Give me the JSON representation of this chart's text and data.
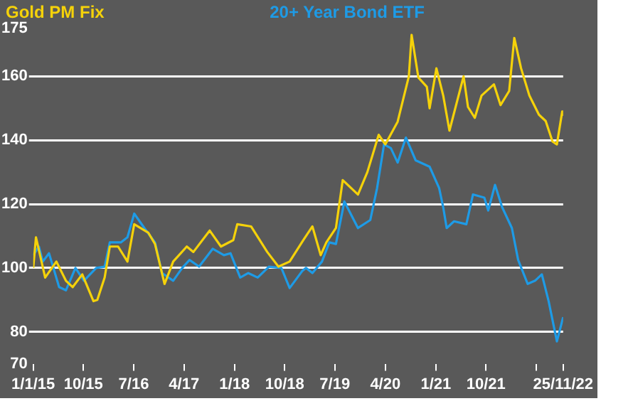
{
  "chart_data": {
    "type": "line",
    "legend": "top",
    "grid": "y",
    "xlim": [
      "2015-01-01",
      "2022-11-25"
    ],
    "ylim": [
      70,
      175
    ],
    "yticks": [
      70,
      80,
      100,
      120,
      140,
      160,
      175
    ],
    "xticks": [
      {
        "value": "2015-01-01",
        "label": "1/1/15"
      },
      {
        "value": "2015-10-01",
        "label": "10/15"
      },
      {
        "value": "2016-07-01",
        "label": "7/16"
      },
      {
        "value": "2017-04-01",
        "label": "4/17"
      },
      {
        "value": "2018-01-01",
        "label": "1/18"
      },
      {
        "value": "2018-10-01",
        "label": "10/18"
      },
      {
        "value": "2019-07-01",
        "label": "7/19"
      },
      {
        "value": "2020-04-01",
        "label": "4/20"
      },
      {
        "value": "2021-01-01",
        "label": "1/21"
      },
      {
        "value": "2021-10-01",
        "label": "10/21"
      },
      {
        "value": "2022-07-01",
        "label": null
      },
      {
        "value": "2022-11-25",
        "label": "25/11/22"
      }
    ],
    "series": [
      {
        "name": "Gold PM Fix",
        "color": "#f5d20a",
        "x": [
          "2015-01-01",
          "2015-01-16",
          "2015-03-07",
          "2015-05-07",
          "2015-06-28",
          "2015-08-04",
          "2015-09-25",
          "2015-11-25",
          "2015-12-16",
          "2016-01-25",
          "2016-02-22",
          "2016-04-07",
          "2016-05-28",
          "2016-07-04",
          "2016-09-19",
          "2016-10-25",
          "2016-12-16",
          "2017-02-01",
          "2017-04-16",
          "2017-05-22",
          "2017-08-19",
          "2017-10-19",
          "2017-12-25",
          "2018-01-16",
          "2018-04-01",
          "2018-06-28",
          "2018-08-28",
          "2018-10-28",
          "2019-01-10",
          "2019-03-01",
          "2019-04-15",
          "2019-05-16",
          "2019-07-07",
          "2019-08-13",
          "2019-11-04",
          "2019-12-25",
          "2020-02-25",
          "2020-04-01",
          "2020-06-07",
          "2020-08-07",
          "2020-08-22",
          "2020-09-28",
          "2020-11-13",
          "2020-11-28",
          "2021-01-04",
          "2021-02-10",
          "2021-03-16",
          "2021-06-01",
          "2021-06-25",
          "2021-08-01",
          "2021-09-07",
          "2021-11-13",
          "2021-12-19",
          "2022-02-04",
          "2022-03-04",
          "2022-04-10",
          "2022-05-25",
          "2022-07-16",
          "2022-08-22",
          "2022-09-28",
          "2022-10-22",
          "2022-11-20",
          "2022-11-25"
        ],
        "values": [
          100,
          109.6,
          97,
          102,
          96,
          94,
          98,
          89.6,
          90,
          97,
          106.7,
          106.7,
          102,
          113.7,
          111,
          107.5,
          95,
          102,
          106.7,
          105,
          111.7,
          106.7,
          108.7,
          113.7,
          113,
          105,
          100.4,
          102,
          108.7,
          113,
          104,
          108,
          112.5,
          127.5,
          123,
          130,
          141.7,
          138.7,
          145.8,
          160,
          173,
          159.6,
          156.7,
          150,
          162.5,
          154,
          143,
          160,
          150.4,
          147,
          154,
          157.5,
          151,
          155.4,
          172,
          162.5,
          154,
          148,
          146,
          139.6,
          138.7,
          149,
          148
        ]
      },
      {
        "name": "20+ Year Bond ETF",
        "color": "#1e9be6",
        "x": [
          "2015-01-01",
          "2015-02-01",
          "2015-02-22",
          "2015-03-28",
          "2015-05-22",
          "2015-06-28",
          "2015-08-19",
          "2015-10-04",
          "2015-12-10",
          "2016-01-25",
          "2016-02-22",
          "2016-04-22",
          "2016-05-28",
          "2016-07-04",
          "2016-08-28",
          "2016-10-25",
          "2016-12-02",
          "2017-02-01",
          "2017-03-22",
          "2017-05-01",
          "2017-06-22",
          "2017-09-04",
          "2017-11-04",
          "2017-12-10",
          "2018-02-01",
          "2018-03-16",
          "2018-05-07",
          "2018-07-07",
          "2018-09-13",
          "2018-10-28",
          "2019-01-04",
          "2019-01-25",
          "2019-03-01",
          "2019-04-22",
          "2019-06-01",
          "2019-07-07",
          "2019-08-22",
          "2019-11-04",
          "2020-01-10",
          "2020-02-16",
          "2020-03-25",
          "2020-05-01",
          "2020-06-07",
          "2020-07-22",
          "2020-09-13",
          "2020-11-28",
          "2021-01-19",
          "2021-02-10",
          "2021-03-01",
          "2021-04-10",
          "2021-06-16",
          "2021-07-22",
          "2021-09-22",
          "2021-10-13",
          "2021-11-19",
          "2021-12-28",
          "2022-02-19",
          "2022-03-25",
          "2022-05-16",
          "2022-06-25",
          "2022-08-01",
          "2022-09-07",
          "2022-10-22",
          "2022-11-25"
        ],
        "values": [
          104,
          106.7,
          102,
          104.6,
          94,
          93,
          100,
          96,
          100,
          100.4,
          108,
          108,
          109.6,
          117,
          112.5,
          108,
          98.4,
          96,
          100,
          102.5,
          100.4,
          106,
          104,
          104.6,
          97,
          98.4,
          97,
          100.4,
          100,
          93.7,
          99,
          100,
          98.4,
          102,
          108,
          107.5,
          120.8,
          112.5,
          115,
          125,
          138.7,
          137.5,
          133,
          140.8,
          133.7,
          131.7,
          125,
          119,
          112.5,
          114.6,
          113.7,
          123,
          122,
          118,
          126,
          119,
          112.5,
          102.5,
          95,
          96,
          98,
          89.6,
          77,
          84.6
        ]
      }
    ]
  }
}
